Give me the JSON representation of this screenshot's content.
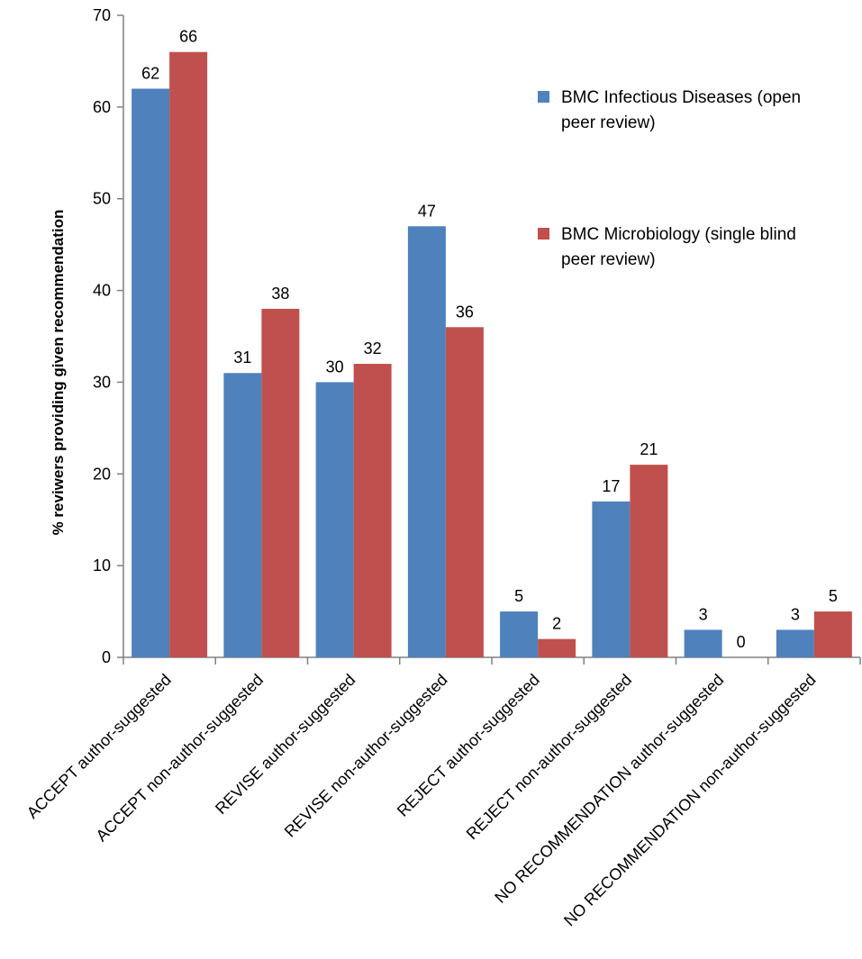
{
  "chart_data": {
    "type": "bar",
    "title": "",
    "xlabel": "",
    "ylabel": "% reviwers providing given recommendation",
    "ylim": [
      0,
      70
    ],
    "yticks": [
      0,
      10,
      20,
      30,
      40,
      50,
      60,
      70
    ],
    "grid": false,
    "legend_position": "top-right",
    "categories": [
      "ACCEPT author-suggested",
      "ACCEPT non-author-suggested",
      "REVISE author-suggested",
      "REVISE non-author-suggested",
      "REJECT author-suggested",
      "REJECT non-author-suggested",
      "NO RECOMMENDATION author-suggested",
      "NO RECOMMENDATION non-author-suggested"
    ],
    "series": [
      {
        "name": "BMC Infectious Diseases (open peer review)",
        "legend_lines": [
          "BMC Infectious Diseases (open",
          "peer review)"
        ],
        "color": "#4F81BD",
        "values": [
          62,
          31,
          30,
          47,
          5,
          17,
          3,
          3
        ]
      },
      {
        "name": "BMC Microbiology (single blind peer review)",
        "legend_lines": [
          "BMC Microbiology (single blind",
          "peer review)"
        ],
        "color": "#C0504D",
        "values": [
          66,
          38,
          32,
          36,
          2,
          21,
          0,
          5
        ]
      }
    ]
  }
}
